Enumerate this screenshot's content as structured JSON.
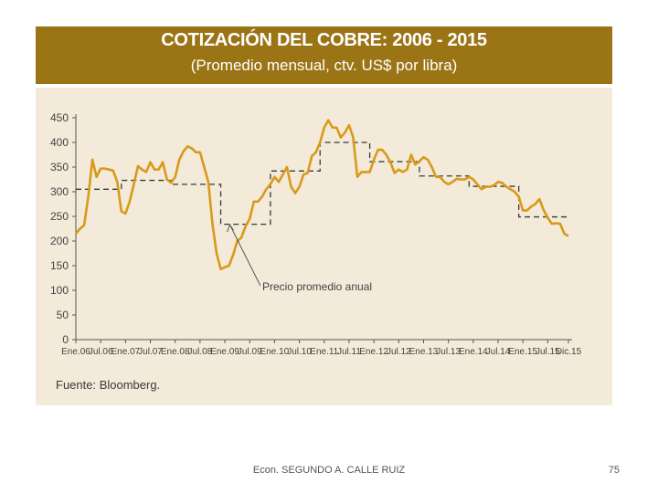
{
  "slide": {
    "author": "Econ. SEGUNDO A. CALLE RUIZ",
    "page_number": "75"
  },
  "chart_data": {
    "type": "line",
    "title": "COTIZACIÓN DEL COBRE: 2006 - 2015",
    "subtitle": "(Promedio mensual, ctv. US$ por libra)",
    "source": "Fuente: Bloomberg.",
    "xlabel": "",
    "ylabel": "",
    "ylim": [
      0,
      450
    ],
    "yticks": [
      0,
      50,
      100,
      150,
      200,
      250,
      300,
      350,
      400,
      450
    ],
    "xlim": [
      0,
      119
    ],
    "x_tick_labels": [
      "Ene.06",
      "Jul.06",
      "Ene.07",
      "Jul.07",
      "Ene.08",
      "Jul.08",
      "Ene.09",
      "Jul.09",
      "Ene.10",
      "Jul.10",
      "Ene.11",
      "Jul.11",
      "Ene.12",
      "Jul.12",
      "Ene.13",
      "Jul.13",
      "Ene.14",
      "Jul.14",
      "Ene.15",
      "Jul.15",
      "Dic.15"
    ],
    "x_tick_months": [
      0,
      6,
      12,
      18,
      24,
      30,
      36,
      42,
      48,
      54,
      60,
      66,
      72,
      78,
      84,
      90,
      96,
      102,
      108,
      114,
      119
    ],
    "annotation": "Precio promedio anual",
    "series": [
      {
        "name": "Promedio mensual",
        "color": "#d99a1a",
        "values": [
          215,
          225,
          232,
          290,
          365,
          330,
          347,
          347,
          345,
          343,
          320,
          260,
          256,
          280,
          315,
          352,
          345,
          340,
          360,
          345,
          345,
          360,
          325,
          318,
          330,
          365,
          382,
          392,
          388,
          380,
          380,
          350,
          320,
          235,
          175,
          143,
          147,
          150,
          172,
          200,
          207,
          230,
          245,
          280,
          280,
          290,
          305,
          315,
          330,
          320,
          335,
          350,
          310,
          297,
          310,
          335,
          338,
          372,
          380,
          400,
          430,
          445,
          430,
          430,
          410,
          420,
          435,
          410,
          330,
          340,
          340,
          340,
          365,
          385,
          385,
          375,
          360,
          338,
          345,
          340,
          345,
          375,
          355,
          362,
          370,
          365,
          350,
          330,
          330,
          320,
          315,
          320,
          326,
          325,
          325,
          330,
          325,
          315,
          305,
          310,
          310,
          313,
          320,
          318,
          310,
          305,
          300,
          290,
          262,
          262,
          270,
          275,
          285,
          263,
          247,
          235,
          236,
          235,
          215,
          210
        ]
      },
      {
        "name": "Precio promedio anual",
        "style": "dashed",
        "color": "#3a3a3a",
        "values": [
          305,
          323,
          315,
          234,
          342,
          400,
          361,
          332,
          311,
          249
        ]
      }
    ]
  }
}
